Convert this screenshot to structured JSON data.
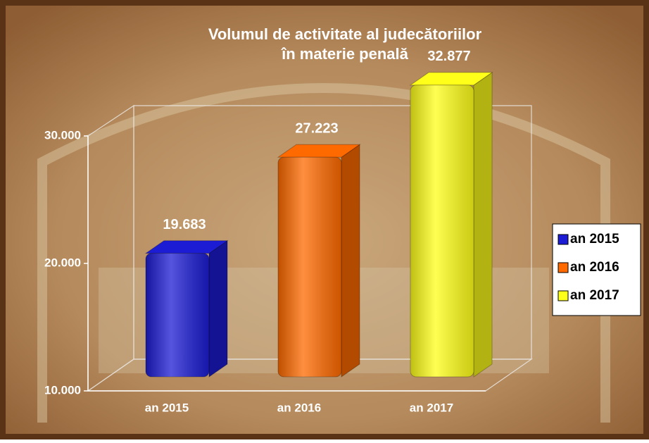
{
  "chart_data": {
    "type": "bar3d",
    "title": "Volumul de activitate al judecătoriilor",
    "subtitle": "în materie penală",
    "categories": [
      "an 2015",
      "an 2016",
      "an 2017"
    ],
    "values": [
      19683,
      27223,
      32877
    ],
    "value_labels": [
      "19.683",
      "27.223",
      "32.877"
    ],
    "colors": [
      "#1c1cd4",
      "#ff6a00",
      "#ffff1a"
    ],
    "ylim": [
      10000,
      30000
    ],
    "yticks": [
      {
        "value": 10000,
        "label": "10.000"
      },
      {
        "value": 20000,
        "label": "20.000"
      },
      {
        "value": 30000,
        "label": "30.000"
      }
    ],
    "legend": "right"
  }
}
